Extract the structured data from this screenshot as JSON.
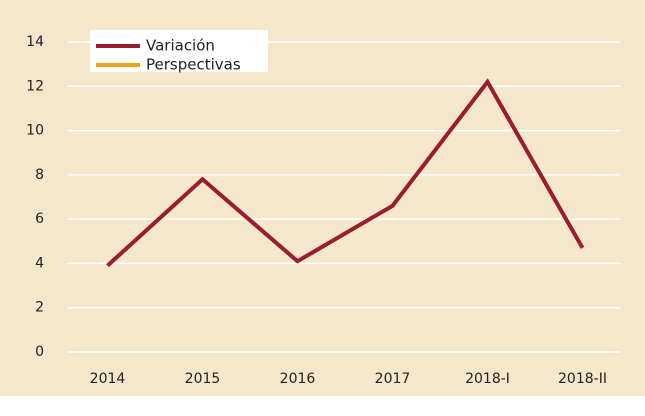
{
  "chart_data": {
    "type": "line",
    "categories": [
      "2014",
      "2015",
      "2016",
      "2017",
      "2018-I",
      "2018-II"
    ],
    "series": [
      {
        "name": "Variación",
        "color": "#9b1b30",
        "values": [
          3.9,
          7.8,
          4.1,
          6.6,
          12.2,
          4.7
        ]
      },
      {
        "name": "Perspectivas",
        "color": "#e8a317",
        "values": [
          null,
          null,
          null,
          null,
          null,
          null
        ]
      }
    ],
    "ylim": [
      0,
      14
    ],
    "yticks": [
      0,
      2,
      4,
      6,
      8,
      10,
      12,
      14
    ],
    "grid": true,
    "legend": "upper left"
  }
}
